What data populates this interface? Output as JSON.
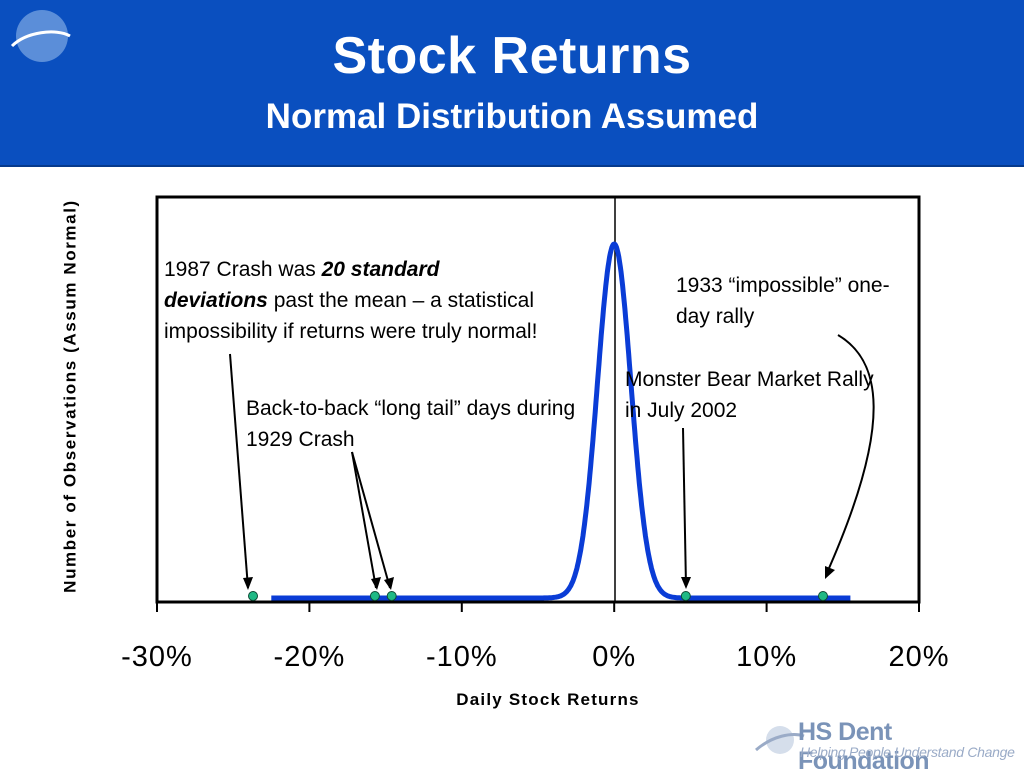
{
  "header": {
    "title": "Stock Returns",
    "subtitle": "Normal Distribution Assumed"
  },
  "colors": {
    "header_background": "#0a4fbf",
    "curve": "#0a3cd6",
    "marker": "#1fb985",
    "footer_logo": "#7a93b8"
  },
  "chart_data": {
    "type": "line",
    "xlabel": "Daily Stock Returns",
    "ylabel": "Number of Observations (Assum Normal)",
    "xlim": [
      -0.3,
      0.2
    ],
    "x_ticks": [
      -0.3,
      -0.2,
      -0.1,
      0.0,
      0.1,
      0.2
    ],
    "tick_labels": [
      "-30%",
      "-20%",
      "-10%",
      "0%",
      "10%",
      "20%"
    ],
    "curve": {
      "mean": 0.0,
      "std_dev": 0.011,
      "x_range": [
        -0.225,
        0.155
      ]
    },
    "grid": false,
    "legend": "none",
    "events": [
      {
        "label": "1987 Crash",
        "x": -0.237
      },
      {
        "label": "1929 Crash day 1",
        "x": -0.157
      },
      {
        "label": "1929 Crash day 2",
        "x": -0.146
      },
      {
        "label": "July 2002 rally",
        "x": 0.047
      },
      {
        "label": "1933 rally",
        "x": 0.137
      }
    ],
    "annotations": {
      "crash_1987_a": "1987 Crash was ",
      "crash_1987_emph": "20 standard deviations",
      "crash_1987_b": " past the mean – a statistical impossibility if returns were truly normal!",
      "crash_1929": "Back-to-back “long tail” days during 1929 Crash",
      "rally_1933": "1933 “impossible” one-day rally",
      "rally_2002": "Monster Bear Market Rally in July 2002"
    }
  },
  "footer": {
    "name": "HS Dent Foundation",
    "tagline": "Helping People Understand Change"
  }
}
